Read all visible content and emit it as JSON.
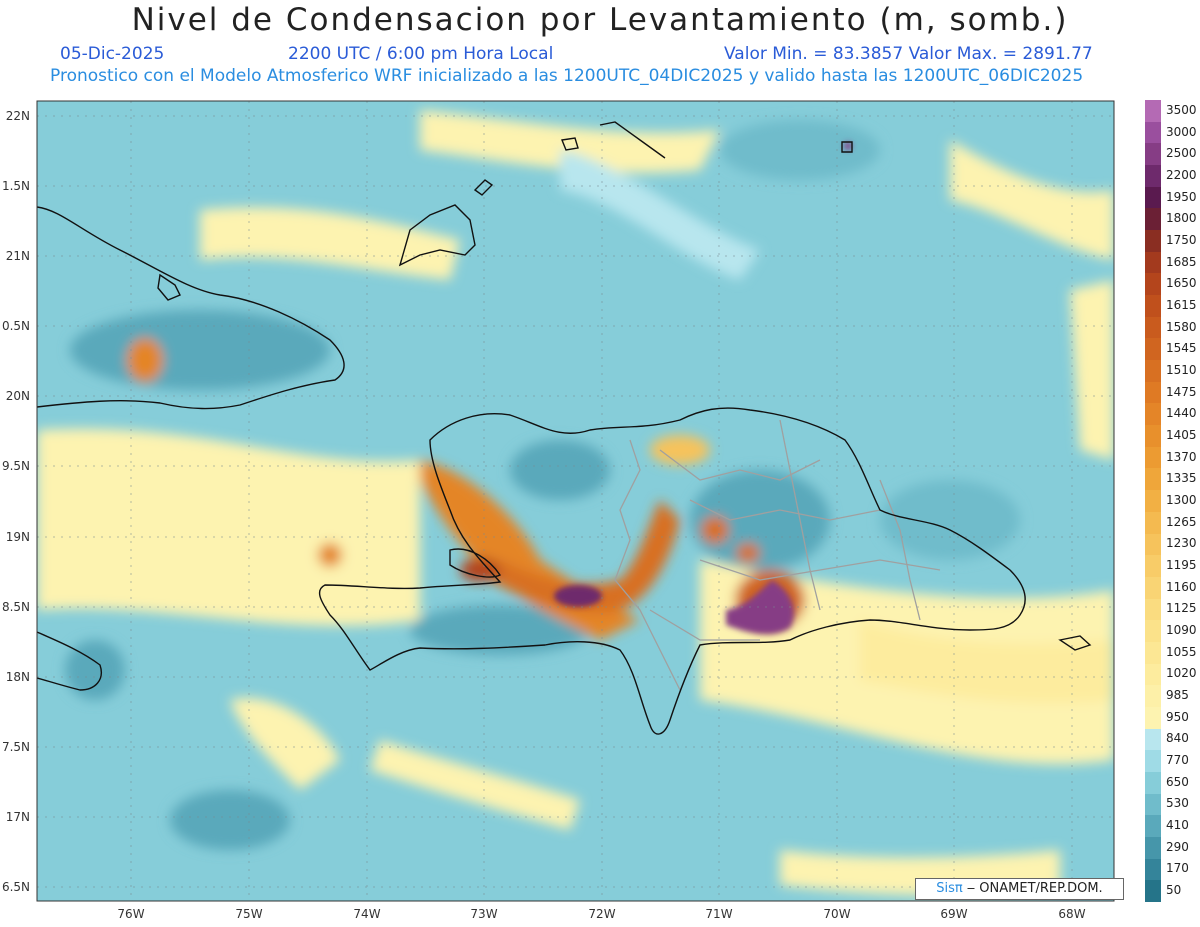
{
  "header": {
    "title": "Nivel de Condensacion por Levantamiento (m, somb.)",
    "date": "05-Dic-2025",
    "time": "2200 UTC / 6:00 pm Hora Local",
    "minmax": "Valor Min. = 83.3857  Valor Max. = 2891.77",
    "description": "Pronostico con el Modelo Atmosferico WRF inicializado a las 1200UTC_04DIC2025 y valido hasta las  1200UTC_06DIC2025"
  },
  "axes": {
    "lat_labels": [
      "22N",
      "1.5N",
      "21N",
      "0.5N",
      "20N",
      "9.5N",
      "19N",
      "8.5N",
      "18N",
      "7.5N",
      "17N",
      "6.5N"
    ],
    "lon_labels": [
      "76W",
      "75W",
      "74W",
      "73W",
      "72W",
      "71W",
      "70W",
      "69W",
      "68W"
    ]
  },
  "colorbar": {
    "labels": [
      "3500",
      "3000",
      "2500",
      "2200",
      "1950",
      "1800",
      "1750",
      "1685",
      "1650",
      "1615",
      "1580",
      "1545",
      "1510",
      "1475",
      "1440",
      "1405",
      "1370",
      "1335",
      "1300",
      "1265",
      "1230",
      "1195",
      "1160",
      "1125",
      "1090",
      "1055",
      "1020",
      "985",
      "950",
      "840",
      "770",
      "650",
      "530",
      "410",
      "290",
      "170",
      "50"
    ],
    "colors": [
      "#b46ab4",
      "#9a4f9e",
      "#863d85",
      "#6e2a6c",
      "#5a1a4f",
      "#6b2035",
      "#8a2e22",
      "#a33a1e",
      "#b4451c",
      "#c0501c",
      "#c95b1e",
      "#d06520",
      "#d87022",
      "#df7a24",
      "#e48528",
      "#e8902c",
      "#ec9b32",
      "#efa63a",
      "#f2b044",
      "#f4ba50",
      "#f6c35c",
      "#f8cc68",
      "#f9d474",
      "#fadc80",
      "#fbe28a",
      "#fce794",
      "#fdec9e",
      "#fdf0a8",
      "#fdf3b0",
      "#b8e6ee",
      "#9fdbe6",
      "#86cdd9",
      "#70bccb",
      "#5aa9bb",
      "#4696aa",
      "#34849a",
      "#257489"
    ]
  },
  "credit": {
    "brand": "Sisπ",
    "text": " ‒ ONAMET/REP.DOM."
  },
  "colors": {
    "sea_base": "#86cdd9",
    "land_low": "#5aa9bb",
    "coast": "#111111",
    "border": "#a0a0a0"
  }
}
